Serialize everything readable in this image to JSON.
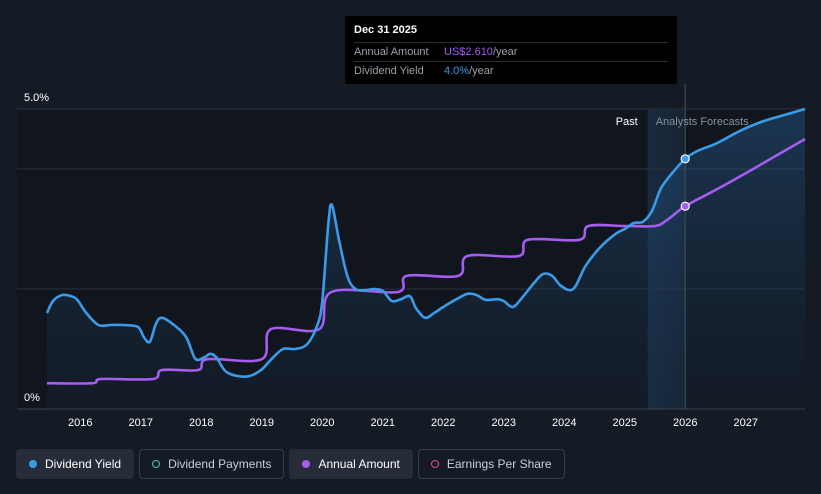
{
  "tooltip": {
    "date": "Dec 31 2025",
    "amount_label": "Annual Amount",
    "amount_value": "US$2.610",
    "amount_unit": "/year",
    "yield_label": "Dividend Yield",
    "yield_value": "4.0%",
    "yield_unit": "/year"
  },
  "regions": {
    "past": "Past",
    "forecast": "Analysts Forecasts"
  },
  "legend": [
    {
      "label": "Dividend Yield",
      "color": "#3a9be8",
      "style": "filled",
      "active": true
    },
    {
      "label": "Dividend Payments",
      "color": "#3ad0b0",
      "style": "ring",
      "active": false
    },
    {
      "label": "Annual Amount",
      "color": "#a55cf0",
      "style": "filled",
      "active": true
    },
    {
      "label": "Earnings Per Share",
      "color": "#e0508a",
      "style": "ring",
      "active": false
    }
  ],
  "chart_data": {
    "type": "line",
    "xlim": [
      2015.45,
      2027.98
    ],
    "ylim": [
      0,
      5.0
    ],
    "y_ticks": [
      {
        "value": 5.0,
        "label": "5.0%"
      },
      {
        "value": 0,
        "label": "0%"
      }
    ],
    "x_ticks": [
      {
        "value": 2016,
        "label": "2016"
      },
      {
        "value": 2017,
        "label": "2017"
      },
      {
        "value": 2018,
        "label": "2018"
      },
      {
        "value": 2019,
        "label": "2019"
      },
      {
        "value": 2020,
        "label": "2020"
      },
      {
        "value": 2021,
        "label": "2021"
      },
      {
        "value": 2022,
        "label": "2022"
      },
      {
        "value": 2023,
        "label": "2023"
      },
      {
        "value": 2024,
        "label": "2024"
      },
      {
        "value": 2025,
        "label": "2025"
      },
      {
        "value": 2026,
        "label": "2026"
      },
      {
        "value": 2027,
        "label": "2027"
      }
    ],
    "gridlines": [
      5.0,
      4.0,
      2.0
    ],
    "forecast_start": 2025.38,
    "highlight_x": 2026.0,
    "series": [
      {
        "name": "Dividend Yield",
        "color": "#3a9be8",
        "points": [
          [
            2015.45,
            1.6
          ],
          [
            2015.55,
            1.8
          ],
          [
            2015.7,
            1.9
          ],
          [
            2015.85,
            1.88
          ],
          [
            2015.95,
            1.82
          ],
          [
            2016.1,
            1.6
          ],
          [
            2016.3,
            1.4
          ],
          [
            2016.5,
            1.4
          ],
          [
            2016.7,
            1.4
          ],
          [
            2016.95,
            1.37
          ],
          [
            2017.05,
            1.2
          ],
          [
            2017.15,
            1.12
          ],
          [
            2017.25,
            1.42
          ],
          [
            2017.35,
            1.52
          ],
          [
            2017.55,
            1.4
          ],
          [
            2017.75,
            1.2
          ],
          [
            2017.9,
            0.84
          ],
          [
            2018.05,
            0.86
          ],
          [
            2018.15,
            0.92
          ],
          [
            2018.25,
            0.86
          ],
          [
            2018.4,
            0.63
          ],
          [
            2018.6,
            0.55
          ],
          [
            2018.8,
            0.55
          ],
          [
            2019.0,
            0.66
          ],
          [
            2019.15,
            0.82
          ],
          [
            2019.35,
            1.0
          ],
          [
            2019.55,
            1.0
          ],
          [
            2019.75,
            1.08
          ],
          [
            2019.92,
            1.4
          ],
          [
            2020.0,
            1.8
          ],
          [
            2020.1,
            3.08
          ],
          [
            2020.16,
            3.4
          ],
          [
            2020.28,
            2.8
          ],
          [
            2020.42,
            2.2
          ],
          [
            2020.55,
            2.0
          ],
          [
            2020.7,
            1.98
          ],
          [
            2020.85,
            2.0
          ],
          [
            2021.0,
            1.97
          ],
          [
            2021.15,
            1.8
          ],
          [
            2021.3,
            1.83
          ],
          [
            2021.45,
            1.88
          ],
          [
            2021.55,
            1.68
          ],
          [
            2021.7,
            1.52
          ],
          [
            2021.85,
            1.6
          ],
          [
            2022.0,
            1.7
          ],
          [
            2022.2,
            1.82
          ],
          [
            2022.4,
            1.92
          ],
          [
            2022.55,
            1.9
          ],
          [
            2022.7,
            1.82
          ],
          [
            2022.9,
            1.83
          ],
          [
            2023.0,
            1.8
          ],
          [
            2023.15,
            1.7
          ],
          [
            2023.3,
            1.85
          ],
          [
            2023.5,
            2.1
          ],
          [
            2023.65,
            2.25
          ],
          [
            2023.8,
            2.22
          ],
          [
            2023.95,
            2.05
          ],
          [
            2024.15,
            2.0
          ],
          [
            2024.35,
            2.38
          ],
          [
            2024.6,
            2.7
          ],
          [
            2024.85,
            2.92
          ],
          [
            2025.0,
            3.0
          ],
          [
            2025.15,
            3.1
          ],
          [
            2025.3,
            3.12
          ],
          [
            2025.45,
            3.3
          ],
          [
            2025.6,
            3.68
          ],
          [
            2025.8,
            3.95
          ],
          [
            2026.0,
            4.17
          ],
          [
            2026.2,
            4.3
          ],
          [
            2026.5,
            4.42
          ],
          [
            2026.8,
            4.58
          ],
          [
            2027.0,
            4.68
          ],
          [
            2027.3,
            4.8
          ],
          [
            2027.6,
            4.89
          ],
          [
            2027.98,
            5.0
          ]
        ]
      },
      {
        "name": "Annual Amount",
        "color": "#a55cf0",
        "points": [
          [
            2015.45,
            0.43
          ],
          [
            2016.2,
            0.43
          ],
          [
            2016.35,
            0.5
          ],
          [
            2017.2,
            0.5
          ],
          [
            2017.35,
            0.65
          ],
          [
            2017.95,
            0.65
          ],
          [
            2018.1,
            0.83
          ],
          [
            2019.0,
            0.83
          ],
          [
            2019.15,
            1.33
          ],
          [
            2019.95,
            1.33
          ],
          [
            2020.15,
            1.95
          ],
          [
            2021.25,
            1.95
          ],
          [
            2021.4,
            2.22
          ],
          [
            2022.25,
            2.22
          ],
          [
            2022.4,
            2.55
          ],
          [
            2023.25,
            2.55
          ],
          [
            2023.4,
            2.82
          ],
          [
            2024.25,
            2.82
          ],
          [
            2024.4,
            3.05
          ],
          [
            2025.0,
            3.05
          ],
          [
            2025.5,
            3.05
          ],
          [
            2025.7,
            3.15
          ],
          [
            2026.0,
            3.38
          ],
          [
            2026.5,
            3.65
          ],
          [
            2027.0,
            3.93
          ],
          [
            2027.5,
            4.22
          ],
          [
            2027.98,
            4.5
          ]
        ]
      }
    ]
  }
}
